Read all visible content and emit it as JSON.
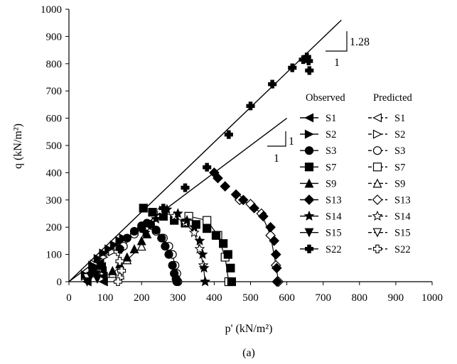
{
  "chart_data": {
    "type": "scatter",
    "xlabel": "p' (kN/m²)",
    "ylabel": "q (kN/m²)",
    "xlim": [
      0,
      1000
    ],
    "ylim": [
      0,
      1000
    ],
    "x_ticks": [
      0,
      100,
      200,
      300,
      400,
      500,
      600,
      700,
      800,
      900,
      1000
    ],
    "y_ticks": [
      0,
      100,
      200,
      300,
      400,
      500,
      600,
      700,
      800,
      900,
      1000
    ],
    "grid": false,
    "legend_placement": "right",
    "legend_headers": {
      "observed": "Observed",
      "predicted": "Predicted"
    },
    "caption": "(a)",
    "slope_lines": [
      {
        "label": "1.28",
        "run_label": "1",
        "points": [
          [
            0,
            0
          ],
          [
            750,
            960
          ]
        ]
      },
      {
        "label": "1",
        "run_label": "1",
        "points": [
          [
            0,
            0
          ],
          [
            600,
            600
          ]
        ]
      }
    ],
    "series": [
      {
        "name": "S1",
        "marker": "triangle-left",
        "observed": {
          "x": [
            50,
            65,
            75,
            85,
            90,
            92,
            95,
            95
          ],
          "y": [
            0,
            40,
            60,
            70,
            55,
            40,
            20,
            0
          ]
        },
        "predicted": {
          "x": [
            50,
            60,
            70,
            80,
            88,
            92,
            95
          ],
          "y": [
            0,
            30,
            50,
            65,
            55,
            30,
            0
          ]
        }
      },
      {
        "name": "S2",
        "marker": "triangle-right",
        "observed": {
          "x": [
            45,
            65,
            80,
            95,
            110,
            125,
            140,
            150
          ],
          "y": [
            25,
            60,
            85,
            105,
            120,
            135,
            150,
            160
          ]
        },
        "predicted": {
          "x": [
            45,
            70,
            95,
            120,
            135
          ],
          "y": [
            20,
            65,
            90,
            110,
            125
          ]
        }
      },
      {
        "name": "S3",
        "marker": "circle",
        "observed": {
          "x": [
            140,
            160,
            180,
            200,
            215,
            225,
            240,
            255,
            265,
            275,
            285,
            290,
            295,
            297
          ],
          "y": [
            120,
            160,
            185,
            205,
            215,
            210,
            190,
            160,
            130,
            100,
            60,
            30,
            10,
            0
          ]
        },
        "predicted": {
          "x": [
            150,
            180,
            210,
            240,
            260,
            275,
            285,
            292,
            297,
            300
          ],
          "y": [
            130,
            175,
            200,
            185,
            160,
            130,
            100,
            60,
            30,
            0
          ]
        }
      },
      {
        "name": "S7",
        "marker": "square",
        "observed": {
          "x": [
            205,
            230,
            260,
            290,
            320,
            350,
            380,
            405,
            425,
            438,
            445,
            448
          ],
          "y": [
            270,
            255,
            240,
            225,
            215,
            210,
            195,
            170,
            140,
            100,
            50,
            0
          ]
        },
        "predicted": {
          "x": [
            330,
            380,
            410,
            430,
            440
          ],
          "y": [
            240,
            225,
            170,
            90,
            0
          ]
        }
      },
      {
        "name": "S9",
        "marker": "triangle-up",
        "observed": {
          "x": [
            120,
            140,
            160,
            180,
            200,
            215
          ],
          "y": [
            40,
            65,
            90,
            120,
            150,
            175
          ]
        },
        "predicted": {
          "x": [
            120,
            160,
            200
          ],
          "y": [
            30,
            80,
            130
          ]
        }
      },
      {
        "name": "S13",
        "marker": "diamond",
        "observed": {
          "x": [
            400,
            410,
            430,
            460,
            480,
            510,
            535,
            555,
            565,
            570,
            572,
            573
          ],
          "y": [
            400,
            380,
            350,
            320,
            300,
            270,
            240,
            200,
            150,
            100,
            50,
            0
          ]
        },
        "predicted": {
          "x": [
            470,
            500,
            530,
            555,
            570,
            577
          ],
          "y": [
            300,
            285,
            250,
            170,
            60,
            0
          ]
        }
      },
      {
        "name": "S14",
        "marker": "star",
        "observed": {
          "x": [
            210,
            240,
            270,
            300,
            325,
            345,
            360,
            368,
            372,
            375
          ],
          "y": [
            180,
            230,
            265,
            250,
            225,
            200,
            150,
            100,
            50,
            0
          ]
        },
        "predicted": {
          "x": [
            250,
            290,
            320,
            345,
            360,
            370,
            375
          ],
          "y": [
            260,
            240,
            215,
            180,
            120,
            60,
            0
          ]
        }
      },
      {
        "name": "S15",
        "marker": "triangle-down",
        "observed": {
          "x": [
            50,
            60,
            65,
            70,
            75,
            78
          ],
          "y": [
            0,
            20,
            35,
            40,
            25,
            10
          ]
        },
        "predicted": {
          "x": [
            50,
            65,
            80
          ],
          "y": [
            15,
            35,
            30
          ]
        }
      },
      {
        "name": "S22",
        "marker": "plus",
        "observed": {
          "x": [
            140,
            200,
            260,
            320,
            380,
            440,
            500,
            560,
            615,
            645,
            655,
            660,
            662
          ],
          "y": [
            120,
            195,
            270,
            345,
            420,
            540,
            645,
            725,
            785,
            815,
            825,
            810,
            775
          ]
        },
        "predicted": {
          "x": [
            135,
            140,
            145,
            140,
            135
          ],
          "y": [
            110,
            75,
            40,
            15,
            0
          ]
        }
      }
    ]
  }
}
